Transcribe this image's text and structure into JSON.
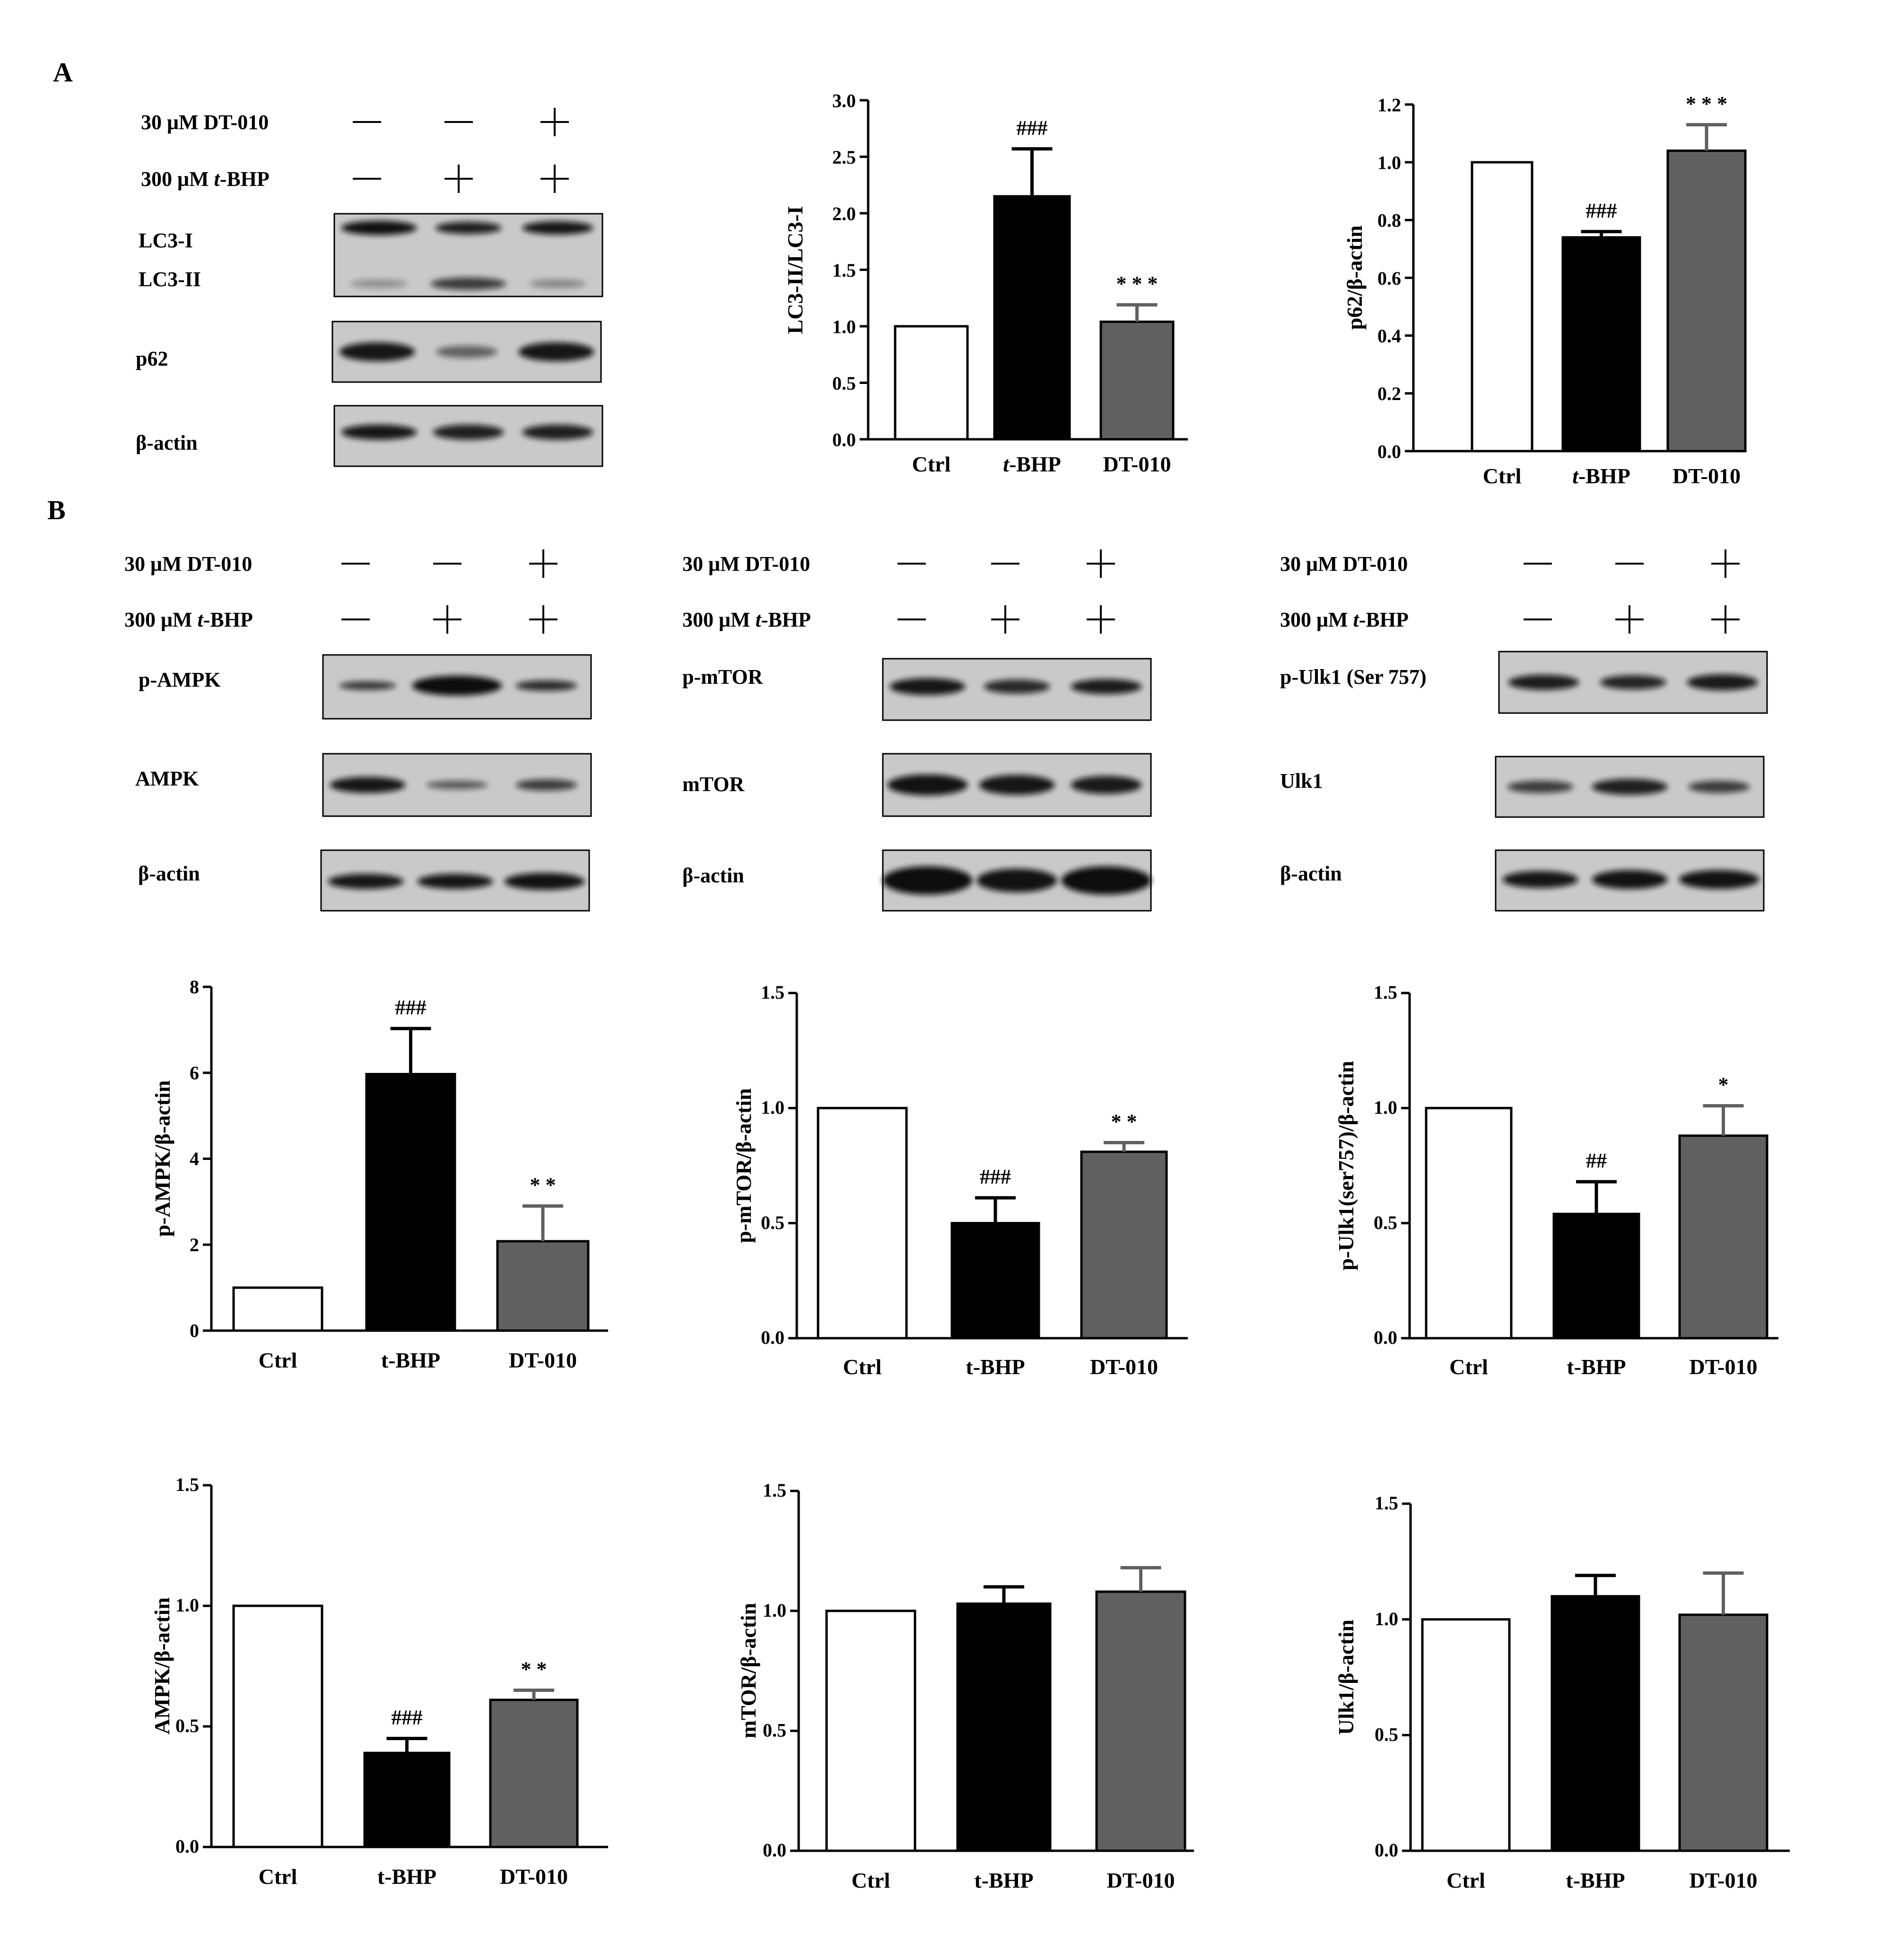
{
  "panels": [
    {
      "label": "A"
    },
    {
      "label": "B"
    }
  ],
  "treatment_labels": {
    "dt": "30 μM DT-010",
    "tbhp_prefix": "300 μM ",
    "tbhp_italic": "t",
    "tbhp_suffix": "-BHP"
  },
  "lanes": {
    "dt": [
      "—",
      "—",
      "+"
    ],
    "tbhp": [
      "—",
      "+",
      "+"
    ]
  },
  "blots": {
    "A": [
      "LC3-I",
      "LC3-II",
      "p62",
      "β-actin"
    ],
    "B1": [
      "p-AMPK",
      "AMPK",
      "β-actin"
    ],
    "B2": [
      "p-mTOR",
      "mTOR",
      "β-actin"
    ],
    "B3": [
      "p-Ulk1 (Ser 757)",
      "Ulk1",
      "β-actin"
    ]
  },
  "colors": {
    "ctrl_fill": "#ffffff",
    "tbhp_fill": "#000000",
    "dt010_fill": "#606060",
    "blot_bg": "#c9c9c9",
    "band": "#111111"
  },
  "chart_data": [
    {
      "id": "lc3",
      "type": "bar",
      "categories": [
        "Ctrl",
        "t-BHP",
        "DT-010"
      ],
      "italic_t": true,
      "values": [
        1.0,
        2.15,
        1.04
      ],
      "errors": [
        0,
        0.42,
        0.15
      ],
      "annotations": [
        "",
        "###",
        "* * *"
      ],
      "ylabel": "LC3-II/LC3-I",
      "ylim": [
        0,
        3.0
      ],
      "yticks": [
        "0.0",
        "0.5",
        "1.0",
        "1.5",
        "2.0",
        "2.5",
        "3.0"
      ]
    },
    {
      "id": "p62",
      "type": "bar",
      "categories": [
        "Ctrl",
        "t-BHP",
        "DT-010"
      ],
      "italic_t": true,
      "values": [
        1.0,
        0.74,
        1.04
      ],
      "errors": [
        0,
        0.02,
        0.09
      ],
      "annotations": [
        "",
        "###",
        "* * *"
      ],
      "ylabel": "p62/β-actin",
      "ylim": [
        0,
        1.2
      ],
      "yticks": [
        "0.0",
        "0.2",
        "0.4",
        "0.6",
        "0.8",
        "1.0",
        "1.2"
      ]
    },
    {
      "id": "pampk",
      "type": "bar",
      "categories": [
        "Ctrl",
        "t-BHP",
        "DT-010"
      ],
      "italic_t": false,
      "values": [
        1.0,
        5.97,
        2.08
      ],
      "errors": [
        0,
        1.06,
        0.82
      ],
      "annotations": [
        "",
        "###",
        "* *"
      ],
      "ylabel": "p-AMPK/β-actin",
      "ylim": [
        0,
        8
      ],
      "yticks": [
        "0",
        "2",
        "4",
        "6",
        "8"
      ]
    },
    {
      "id": "pmtor",
      "type": "bar",
      "categories": [
        "Ctrl",
        "t-BHP",
        "DT-010"
      ],
      "italic_t": false,
      "values": [
        1.0,
        0.5,
        0.81
      ],
      "errors": [
        0,
        0.11,
        0.04
      ],
      "annotations": [
        "",
        "###",
        "* *"
      ],
      "ylabel": "p-mTOR/β-actin",
      "ylim": [
        0,
        1.5
      ],
      "yticks": [
        "0.0",
        "0.5",
        "1.0",
        "1.5"
      ]
    },
    {
      "id": "pulk1",
      "type": "bar",
      "categories": [
        "Ctrl",
        "t-BHP",
        "DT-010"
      ],
      "italic_t": false,
      "values": [
        1.0,
        0.54,
        0.88
      ],
      "errors": [
        0,
        0.14,
        0.13
      ],
      "annotations": [
        "",
        "##",
        "*"
      ],
      "ylabel": "p-Ulk1(ser757)/β-actin",
      "ylim": [
        0,
        1.5
      ],
      "yticks": [
        "0.0",
        "0.5",
        "1.0",
        "1.5"
      ]
    },
    {
      "id": "ampk",
      "type": "bar",
      "categories": [
        "Ctrl",
        "t-BHP",
        "DT-010"
      ],
      "italic_t": false,
      "values": [
        1.0,
        0.39,
        0.61
      ],
      "errors": [
        0,
        0.06,
        0.04
      ],
      "annotations": [
        "",
        "###",
        "* *"
      ],
      "ylabel": "AMPK/β-actin",
      "ylim": [
        0,
        1.5
      ],
      "yticks": [
        "0.0",
        "0.5",
        "1.0",
        "1.5"
      ]
    },
    {
      "id": "mtor",
      "type": "bar",
      "categories": [
        "Ctrl",
        "t-BHP",
        "DT-010"
      ],
      "italic_t": false,
      "values": [
        1.0,
        1.03,
        1.08
      ],
      "errors": [
        0,
        0.07,
        0.1
      ],
      "annotations": [
        "",
        "",
        ""
      ],
      "ylabel": "mTOR/β-actin",
      "ylim": [
        0,
        1.5
      ],
      "yticks": [
        "0.0",
        "0.5",
        "1.0",
        "1.5"
      ]
    },
    {
      "id": "ulk1",
      "type": "bar",
      "categories": [
        "Ctrl",
        "t-BHP",
        "DT-010"
      ],
      "italic_t": false,
      "values": [
        1.0,
        1.1,
        1.02
      ],
      "errors": [
        0,
        0.09,
        0.18
      ],
      "annotations": [
        "",
        "",
        ""
      ],
      "ylabel": "Ulk1/β-actin",
      "ylim": [
        0,
        1.5
      ],
      "yticks": [
        "0.0",
        "0.5",
        "1.0",
        "1.5"
      ]
    }
  ]
}
